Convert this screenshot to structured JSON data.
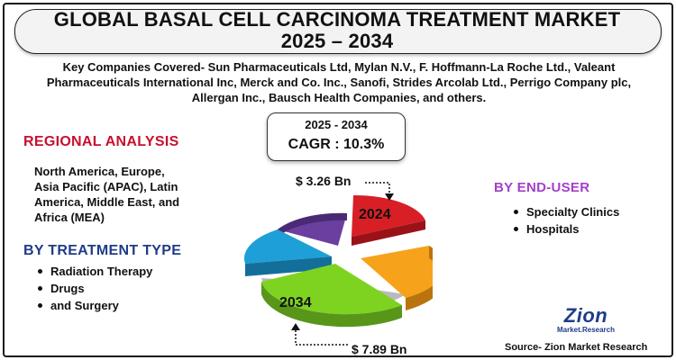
{
  "title_line1": "GLOBAL BASAL CELL CARCINOMA TREATMENT MARKET",
  "title_line2": "2025 – 2034",
  "companies_line1": "Key Companies Covered- Sun Pharmaceuticals Ltd, Mylan N.V., F. Hoffmann-La Roche Ltd., Valeant",
  "companies_line2": "Pharmaceuticals International Inc, Merck and Co. Inc., Sanofi, Strides Arcolab Ltd., Perrigo Company plc,",
  "companies_line3": "Allergan Inc., Bausch Health Companies, and others.",
  "cagr": {
    "period": "2025 - 2034",
    "value": "CAGR : 10.3%"
  },
  "regional": {
    "heading": "REGIONAL ANALYSIS",
    "line1": "North America, Europe,",
    "line2": "Asia Pacific (APAC), Latin",
    "line3": "America, Middle East, and",
    "line4": "Africa (MEA)"
  },
  "treatment": {
    "heading": "BY TREATMENT TYPE",
    "items": [
      "Radiation Therapy",
      "Drugs",
      "and Surgery"
    ]
  },
  "end_user": {
    "heading": "BY  END-USER",
    "items": [
      "Specialty Clinics",
      "Hospitals"
    ]
  },
  "market": {
    "value_2025": "$ 3.26  Bn",
    "value_2034": "$ 7.89 Bn",
    "year_start": "2024",
    "year_end": "2034"
  },
  "logo": {
    "name": "Zion",
    "tagline": "Market.Research"
  },
  "source": "Source- Zion Market Research",
  "colors": {
    "red": "#d81f26",
    "orange": "#f7a21b",
    "green": "#7ed321",
    "blue": "#1e9fd8",
    "purple": "#6a3fa0",
    "heading_red": "#c8102e",
    "heading_blue": "#1f3c88",
    "heading_purple": "#a43fc9"
  }
}
